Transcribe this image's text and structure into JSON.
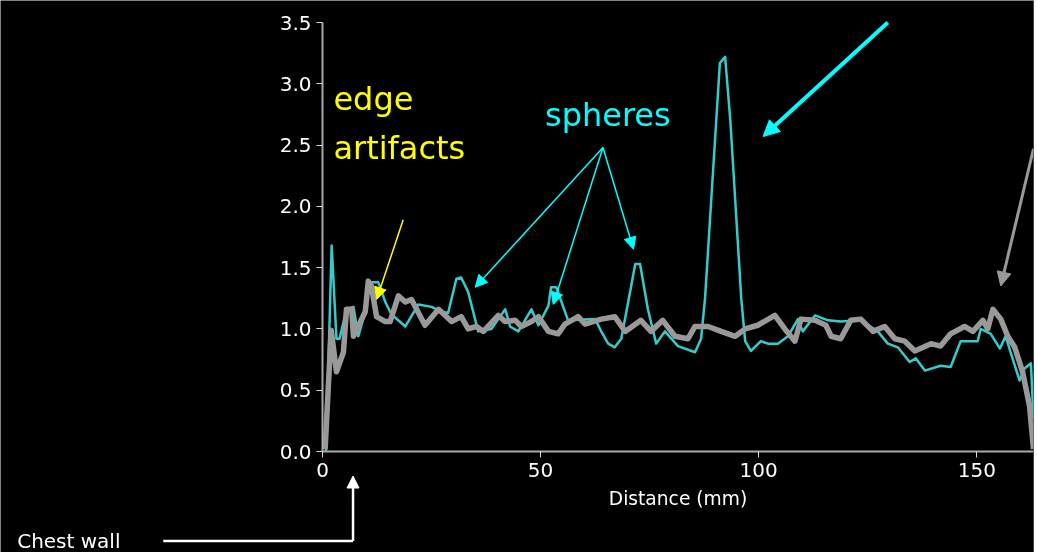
{
  "chart_data": {
    "type": "line",
    "xlabel": "Distance (mm)",
    "xlim": [
      0,
      163
    ],
    "ylim": [
      0,
      3.5
    ],
    "xticks": [
      0,
      50,
      100,
      150
    ],
    "yticks": [
      {
        "value": 0,
        "label": "0.0"
      },
      {
        "value": 0.5,
        "label": "0.5"
      },
      {
        "value": 1,
        "label": "1.0"
      },
      {
        "value": 1.5,
        "label": "1.5"
      },
      {
        "value": 2,
        "label": "2.0"
      },
      {
        "value": 2.5,
        "label": "2.5"
      },
      {
        "value": 3,
        "label": "3.0"
      },
      {
        "value": 3.5,
        "label": "3.5"
      }
    ],
    "grid": false,
    "marker": "none",
    "line_style": "solid",
    "series": [
      {
        "color": "#33cccc",
        "x": [
          0.8,
          2.1,
          3.2,
          3.9,
          5.5,
          7.1,
          8.2,
          9.8,
          10.5,
          12.8,
          14.4,
          15.8,
          19,
          22,
          25,
          27.3,
          28.8,
          30.7,
          31.8,
          33.4,
          35.7,
          38.7,
          41.9,
          43,
          44.9,
          47.9,
          49.5,
          51.8,
          52.4,
          53.6,
          56.3,
          62.5,
          63.9,
          65.5,
          67,
          68.5,
          70.5,
          71.7,
          72.8,
          74.6,
          76.5,
          78.5,
          81.5,
          85.4,
          86.8,
          87.7,
          91.1,
          92.3,
          93.5,
          96,
          96.9,
          98.2,
          100.5,
          102.1,
          104.4,
          106.7,
          109,
          110.1,
          112.9,
          115.9,
          118.8,
          123.4,
          127.3,
          129.6,
          131.9,
          134.6,
          136,
          138.1,
          141.7,
          144,
          146.3,
          150.2,
          150.9,
          153.2,
          155.3,
          156.6,
          159.8,
          161,
          162.4,
          163
        ],
        "values": [
          0.0,
          1.68,
          0.92,
          0.92,
          1.16,
          1.18,
          0.94,
          1.14,
          1.38,
          1.38,
          1.22,
          1.12,
          1.02,
          1.2,
          1.18,
          1.14,
          1.13,
          1.41,
          1.42,
          1.3,
          0.98,
          1.0,
          1.16,
          1.02,
          0.98,
          1.16,
          1.03,
          1.19,
          1.34,
          1.34,
          1.07,
          1.08,
          0.98,
          0.88,
          0.85,
          0.92,
          1.3,
          1.53,
          1.53,
          1.16,
          0.88,
          0.98,
          0.86,
          0.81,
          0.92,
          1.25,
          3.17,
          3.22,
          2.7,
          1.25,
          0.9,
          0.82,
          0.9,
          0.88,
          0.88,
          0.94,
          1.08,
          0.98,
          1.11,
          1.07,
          1.06,
          1.07,
          0.98,
          0.88,
          0.85,
          0.73,
          0.76,
          0.66,
          0.7,
          0.69,
          0.9,
          0.9,
          1.0,
          0.96,
          0.84,
          0.94,
          0.58,
          0.68,
          0.72,
          0.27
        ]
      },
      {
        "color": "#999999",
        "x": [
          0.6,
          2,
          3.2,
          4.8,
          5.5,
          6.7,
          7.1,
          9.8,
          10.5,
          11.2,
          12.4,
          14.4,
          15.5,
          17.4,
          19,
          20.4,
          23.5,
          26.6,
          29.6,
          31.8,
          33.4,
          35.3,
          36.9,
          40.3,
          41.9,
          44.2,
          45.6,
          47.9,
          49.5,
          51.8,
          54,
          55.6,
          58.6,
          60.2,
          63.9,
          67,
          69.4,
          73,
          75.3,
          78,
          80.8,
          83.8,
          85.4,
          88.4,
          91.4,
          94.6,
          96.9,
          99.8,
          103.7,
          106,
          108.3,
          109.7,
          112.9,
          115.4,
          116.6,
          118.8,
          121.1,
          123.4,
          126.2,
          128.9,
          131.2,
          133.5,
          135.8,
          139.5,
          141.7,
          144,
          147.2,
          149.1,
          151.4,
          152.5,
          153.7,
          155.5,
          157.1,
          158.7,
          160.5,
          162.1,
          163
        ],
        "values": [
          0.02,
          0.99,
          0.65,
          0.81,
          1.16,
          1.16,
          0.94,
          1.14,
          1.39,
          1.35,
          1.1,
          1.06,
          1.06,
          1.27,
          1.22,
          1.24,
          1.03,
          1.16,
          1.06,
          1.1,
          1.0,
          1.02,
          0.98,
          1.11,
          1.06,
          1.07,
          1.02,
          1.06,
          1.1,
          0.98,
          0.96,
          1.04,
          1.1,
          1.04,
          1.08,
          1.1,
          0.98,
          1.07,
          0.98,
          1.07,
          0.94,
          0.92,
          1.02,
          1.02,
          0.98,
          0.94,
          1.0,
          1.03,
          1.11,
          1.0,
          0.9,
          1.08,
          1.07,
          1.03,
          0.94,
          0.92,
          1.07,
          1.08,
          0.98,
          1.02,
          0.92,
          0.9,
          0.82,
          0.88,
          0.86,
          0.96,
          1.02,
          0.98,
          1.07,
          1.0,
          1.16,
          1.08,
          0.94,
          0.85,
          0.65,
          0.37,
          0.02
        ]
      }
    ],
    "annotations": [
      "edge\nartifacts",
      {
        "text": "spheres",
        "x": 52.9,
        "y": 1.2
      },
      "Chest wall"
    ]
  }
}
